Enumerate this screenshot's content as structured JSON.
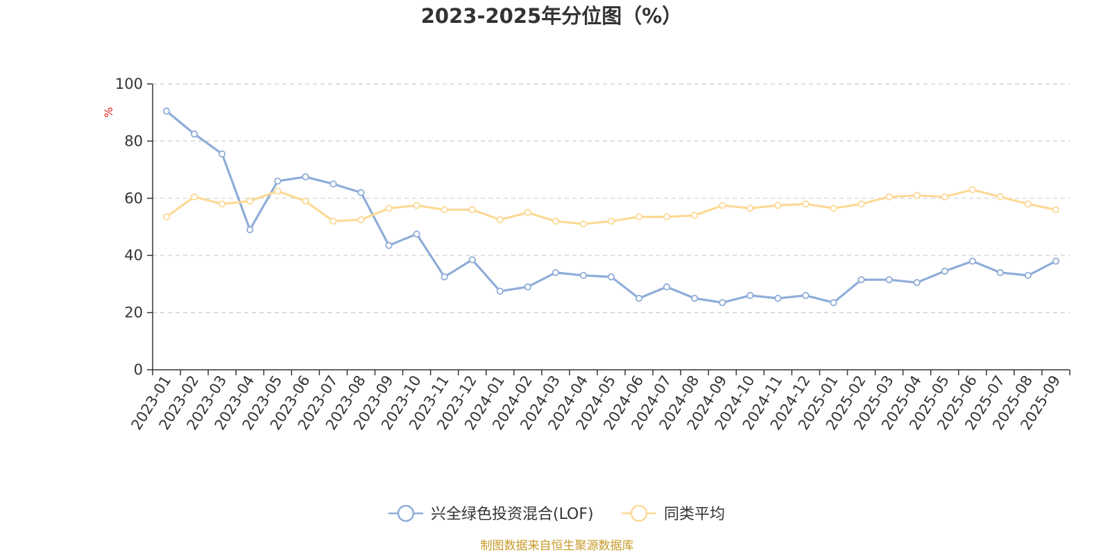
{
  "chart_data": {
    "type": "line",
    "title": "2023-2025年分位图（%）",
    "ylabel": "%",
    "xlabel": "",
    "ylim": [
      0,
      100
    ],
    "yticks": [
      0,
      20,
      40,
      60,
      80,
      100
    ],
    "grid": true,
    "legend_position": "bottom",
    "categories": [
      "2023-01",
      "2023-02",
      "2023-03",
      "2023-04",
      "2023-05",
      "2023-06",
      "2023-07",
      "2023-08",
      "2023-09",
      "2023-10",
      "2023-11",
      "2023-12",
      "2024-01",
      "2024-02",
      "2024-03",
      "2024-04",
      "2024-05",
      "2024-06",
      "2024-07",
      "2024-08",
      "2024-09",
      "2024-10",
      "2024-11",
      "2024-12",
      "2025-01",
      "2025-02",
      "2025-03",
      "2025-04",
      "2025-05",
      "2025-06",
      "2025-07",
      "2025-08",
      "2025-09"
    ],
    "series": [
      {
        "name": "兴全绿色投资混合(LOF)",
        "color": "#8eacd8",
        "values": [
          90.5,
          82.5,
          75.5,
          49.0,
          66.0,
          67.5,
          65.0,
          62.0,
          43.5,
          47.5,
          32.5,
          38.5,
          27.5,
          29.0,
          34.0,
          33.0,
          32.5,
          25.0,
          29.0,
          25.0,
          23.5,
          26.0,
          25.0,
          26.0,
          23.5,
          31.5,
          31.5,
          30.5,
          34.5,
          38.0,
          34.0,
          33.0,
          38.0
        ]
      },
      {
        "name": "同类平均",
        "color": "#fcd996",
        "values": [
          53.5,
          60.5,
          58.0,
          59.0,
          62.5,
          59.0,
          52.0,
          52.5,
          56.5,
          57.5,
          56.0,
          56.0,
          52.5,
          55.0,
          52.0,
          51.0,
          52.0,
          53.5,
          53.5,
          54.0,
          57.5,
          56.5,
          57.5,
          58.0,
          56.5,
          58.0,
          60.5,
          61.0,
          60.5,
          63.0,
          60.5,
          58.0,
          56.0
        ]
      }
    ]
  },
  "unit_color": "#e02020",
  "source": {
    "text": "制图数据来自恒生聚源数据库",
    "color": "#c89a2a"
  },
  "colors": {
    "axis": "#333333",
    "grid": "#cccccc",
    "text": "#333333"
  }
}
